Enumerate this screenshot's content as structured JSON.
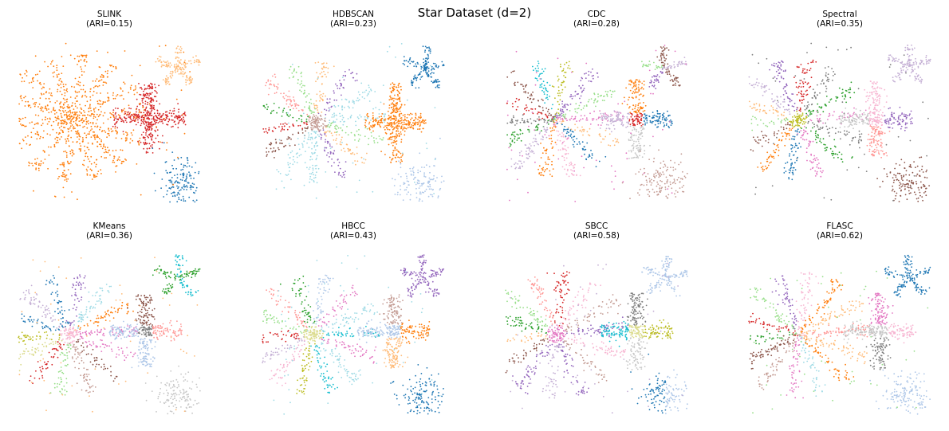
{
  "figure": {
    "title": "Star Dataset (d=2)"
  },
  "palette": {
    "blue": "#1f77b4",
    "light_blue": "#aec7e8",
    "orange": "#ff7f0e",
    "light_orange": "#ffbb78",
    "green": "#2ca02c",
    "light_green": "#98df8a",
    "red": "#d62728",
    "light_red": "#ff9896",
    "purple": "#9467bd",
    "light_purple": "#c5b0d5",
    "brown": "#8c564b",
    "light_brown": "#c49c94",
    "pink": "#e377c2",
    "light_pink": "#f7b6d2",
    "gray": "#7f7f7f",
    "light_gray": "#c7c7c7",
    "olive": "#bcbd22",
    "light_olive": "#dbdb8d",
    "cyan": "#17becf",
    "light_cyan": "#9edae5"
  },
  "chart_data": [
    {
      "type": "scatter",
      "method": "SLINK",
      "ari_label": "(ARI=0.15)",
      "ari": 0.15,
      "xlim": [
        0,
        100
      ],
      "ylim": [
        0,
        100
      ],
      "axes_visible": false,
      "groups": [
        {
          "name": "big-star",
          "shape": "star",
          "center": [
            30,
            53
          ],
          "arms": 14,
          "length": 40,
          "points": 900,
          "rotation": 5,
          "color_mode": "single",
          "colors": [
            "#ff7f0e"
          ]
        },
        {
          "name": "plus",
          "shape": "plus",
          "center": [
            72,
            53
          ],
          "half_width": 20,
          "half_height": 22,
          "points": 450,
          "color_mode": "single",
          "colors": [
            "#d62728"
          ]
        },
        {
          "name": "small-star",
          "shape": "star",
          "center": [
            88,
            85
          ],
          "arms": 5,
          "length": 13,
          "points": 170,
          "rotation": 18,
          "color_mode": "single",
          "colors": [
            "#ffbb78"
          ]
        },
        {
          "name": "blob",
          "shape": "blob",
          "center": [
            90,
            12
          ],
          "spread": [
            6,
            8
          ],
          "points": 160,
          "color_mode": "single",
          "colors": [
            "#1f77b4"
          ]
        },
        {
          "name": "noise",
          "shape": "noise",
          "points": 55,
          "color_mode": "single",
          "colors": [
            "#ff7f0e"
          ]
        }
      ]
    },
    {
      "type": "scatter",
      "method": "HDBSCAN",
      "ari_label": "(ARI=0.23)",
      "ari": 0.23,
      "xlim": [
        0,
        100
      ],
      "ylim": [
        0,
        100
      ],
      "axes_visible": false,
      "groups": [
        {
          "name": "big-star",
          "shape": "star",
          "center": [
            30,
            50
          ],
          "arms": 14,
          "length": 38,
          "points": 800,
          "rotation": 8,
          "color_mode": "core-arms",
          "colors": [
            "#c49c94",
            "#9edae5",
            "#9edae5",
            "#9467bd",
            "#ffbb78",
            "#98df8a",
            "#ff9896",
            "#2ca02c",
            "#d62728",
            "#8c564b"
          ]
        },
        {
          "name": "plus",
          "shape": "plus",
          "center": [
            73,
            50
          ],
          "half_width": 17,
          "half_height": 25,
          "points": 420,
          "color_mode": "single",
          "colors": [
            "#ff7f0e"
          ]
        },
        {
          "name": "small-star",
          "shape": "star",
          "center": [
            90,
            84
          ],
          "arms": 5,
          "length": 14,
          "points": 170,
          "rotation": 14,
          "color_mode": "single",
          "colors": [
            "#1f77b4"
          ]
        },
        {
          "name": "blob",
          "shape": "blob",
          "center": [
            88,
            12
          ],
          "spread": [
            8,
            8
          ],
          "points": 140,
          "color_mode": "single",
          "colors": [
            "#aec7e8"
          ]
        },
        {
          "name": "noise",
          "shape": "noise",
          "points": 45,
          "color_mode": "single",
          "colors": [
            "#9edae5"
          ]
        }
      ]
    },
    {
      "type": "scatter",
      "method": "CDC",
      "ari_label": "(ARI=0.28)",
      "ari": 0.28,
      "xlim": [
        0,
        100
      ],
      "ylim": [
        0,
        100
      ],
      "axes_visible": false,
      "groups": [
        {
          "name": "big-star",
          "shape": "star",
          "center": [
            27,
            52
          ],
          "arms": 14,
          "length": 38,
          "points": 800,
          "rotation": 3,
          "color_mode": "arms",
          "colors": [
            "#e377c2",
            "#98df8a",
            "#9467bd",
            "#bcbd22",
            "#17becf",
            "#8c564b",
            "#d62728",
            "#7f7f7f",
            "#2ca02c",
            "#c5b0d5",
            "#ff7f0e",
            "#f7b6d2",
            "#1f77b4",
            "#ffbb78"
          ]
        },
        {
          "name": "plus",
          "shape": "plus",
          "center": [
            72,
            52
          ],
          "half_width": 20,
          "half_height": 25,
          "points": 420,
          "color_mode": "quadrants",
          "colors": [
            "#c5b0d5",
            "#1f77b4",
            "#ff7f0e",
            "#c7c7c7",
            "#d62728"
          ]
        },
        {
          "name": "small-star",
          "shape": "star",
          "center": [
            87,
            84
          ],
          "arms": 5,
          "length": 14,
          "points": 160,
          "rotation": 20,
          "color_mode": "arms",
          "colors": [
            "#c5b0d5",
            "#8c564b",
            "#98df8a",
            "#9467bd",
            "#8c564b"
          ]
        },
        {
          "name": "blob",
          "shape": "blob",
          "center": [
            87,
            13
          ],
          "spread": [
            8,
            8
          ],
          "points": 150,
          "color_mode": "single",
          "colors": [
            "#c49c94"
          ]
        },
        {
          "name": "noise",
          "shape": "noise",
          "points": 60,
          "color_mode": "single",
          "colors": [
            "#e377c2"
          ]
        }
      ]
    },
    {
      "type": "scatter",
      "method": "Spectral",
      "ari_label": "(ARI=0.35)",
      "ari": 0.35,
      "xlim": [
        0,
        100
      ],
      "ylim": [
        0,
        100
      ],
      "axes_visible": false,
      "groups": [
        {
          "name": "big-star",
          "shape": "star",
          "center": [
            27,
            52
          ],
          "arms": 14,
          "length": 38,
          "points": 800,
          "rotation": 6,
          "color_mode": "core-arms",
          "colors": [
            "#bcbd22",
            "#e377c2",
            "#2ca02c",
            "#7f7f7f",
            "#d62728",
            "#9467bd",
            "#c5b0d5",
            "#ffbb78",
            "#98df8a",
            "#8c564b",
            "#ff7f0e",
            "#1f77b4"
          ]
        },
        {
          "name": "plus",
          "shape": "plus",
          "center": [
            70,
            52
          ],
          "half_width": 20,
          "half_height": 24,
          "points": 420,
          "color_mode": "quadrants",
          "colors": [
            "#c7c7c7",
            "#9467bd",
            "#f7b6d2",
            "#ff9896",
            "#f7b6d2"
          ]
        },
        {
          "name": "small-star",
          "shape": "star",
          "center": [
            88,
            86
          ],
          "arms": 5,
          "length": 13,
          "points": 160,
          "rotation": 15,
          "color_mode": "single",
          "colors": [
            "#c5b0d5"
          ]
        },
        {
          "name": "blob",
          "shape": "blob",
          "center": [
            88,
            12
          ],
          "spread": [
            7,
            8
          ],
          "points": 150,
          "color_mode": "single",
          "colors": [
            "#8c564b"
          ]
        },
        {
          "name": "noise",
          "shape": "noise",
          "points": 50,
          "color_mode": "single",
          "colors": [
            "#7f7f7f"
          ]
        }
      ]
    },
    {
      "type": "scatter",
      "method": "KMeans",
      "ari_label": "(ARI=0.36)",
      "ari": 0.36,
      "xlim": [
        0,
        100
      ],
      "ylim": [
        0,
        100
      ],
      "axes_visible": false,
      "groups": [
        {
          "name": "big-star",
          "shape": "star",
          "center": [
            28,
            50
          ],
          "arms": 14,
          "length": 38,
          "points": 800,
          "rotation": 4,
          "color_mode": "core-arms",
          "colors": [
            "#f7b6d2",
            "#e377c2",
            "#ff7f0e",
            "#9edae5",
            "#9467bd",
            "#1f77b4",
            "#c5b0d5",
            "#1f77b4",
            "#bcbd22",
            "#dbdb8d",
            "#d62728",
            "#98df8a",
            "#c49c94",
            "#8c564b"
          ]
        },
        {
          "name": "plus",
          "shape": "plus",
          "center": [
            70,
            52
          ],
          "half_width": 20,
          "half_height": 23,
          "points": 420,
          "color_mode": "quadrants",
          "colors": [
            "#aec7e8",
            "#ff9896",
            "#8c564b",
            "#aec7e8",
            "#7f7f7f"
          ]
        },
        {
          "name": "small-star",
          "shape": "star",
          "center": [
            88,
            86
          ],
          "arms": 5,
          "length": 14,
          "points": 160,
          "rotation": 16,
          "color_mode": "arms",
          "colors": [
            "#2ca02c",
            "#17becf",
            "#2ca02c",
            "#2ca02c",
            "#17becf"
          ]
        },
        {
          "name": "blob",
          "shape": "blob",
          "center": [
            88,
            12
          ],
          "spread": [
            7,
            8
          ],
          "points": 150,
          "color_mode": "single",
          "colors": [
            "#c7c7c7"
          ]
        },
        {
          "name": "noise",
          "shape": "noise",
          "points": 55,
          "color_mode": "single",
          "colors": [
            "#ffbb78"
          ]
        }
      ]
    },
    {
      "type": "scatter",
      "method": "HBCC",
      "ari_label": "(ARI=0.43)",
      "ari": 0.43,
      "xlim": [
        0,
        100
      ],
      "ylim": [
        0,
        100
      ],
      "axes_visible": false,
      "groups": [
        {
          "name": "big-star",
          "shape": "star",
          "center": [
            28,
            50
          ],
          "arms": 14,
          "length": 38,
          "points": 800,
          "rotation": 2,
          "color_mode": "core-arms",
          "colors": [
            "#dbdb8d",
            "#17becf",
            "#9edae5",
            "#e377c2",
            "#aec7e8",
            "#2ca02c",
            "#ff9896",
            "#98df8a",
            "#d62728",
            "#c5b0d5",
            "#f7b6d2",
            "#bcbd22"
          ]
        },
        {
          "name": "plus",
          "shape": "plus",
          "center": [
            72,
            52
          ],
          "half_width": 20,
          "half_height": 23,
          "points": 420,
          "color_mode": "quadrants",
          "colors": [
            "#aec7e8",
            "#ff7f0e",
            "#c49c94",
            "#ffbb78",
            "#aec7e8"
          ]
        },
        {
          "name": "small-star",
          "shape": "star",
          "center": [
            88,
            86
          ],
          "arms": 5,
          "length": 14,
          "points": 160,
          "rotation": 18,
          "color_mode": "single",
          "colors": [
            "#9467bd"
          ]
        },
        {
          "name": "blob",
          "shape": "blob",
          "center": [
            88,
            12
          ],
          "spread": [
            7,
            8
          ],
          "points": 150,
          "color_mode": "single",
          "colors": [
            "#1f77b4"
          ]
        },
        {
          "name": "noise",
          "shape": "noise",
          "points": 55,
          "color_mode": "single",
          "colors": [
            "#9edae5"
          ]
        }
      ]
    },
    {
      "type": "scatter",
      "method": "SBCC",
      "ari_label": "(ARI=0.58)",
      "ari": 0.58,
      "xlim": [
        0,
        100
      ],
      "ylim": [
        0,
        100
      ],
      "axes_visible": false,
      "groups": [
        {
          "name": "big-star",
          "shape": "star",
          "center": [
            28,
            50
          ],
          "arms": 14,
          "length": 40,
          "points": 820,
          "rotation": 7,
          "color_mode": "core-arms",
          "colors": [
            "#e377c2",
            "#9467bd",
            "#c49c94",
            "#f7b6d2",
            "#d62728",
            "#ff9896",
            "#98df8a",
            "#2ca02c",
            "#ffbb78",
            "#8c564b",
            "#9467bd",
            "#c5b0d5"
          ]
        },
        {
          "name": "plus",
          "shape": "plus",
          "center": [
            72,
            52
          ],
          "half_width": 20,
          "half_height": 24,
          "points": 420,
          "color_mode": "quadrants",
          "colors": [
            "#17becf",
            "#bcbd22",
            "#7f7f7f",
            "#c7c7c7",
            "#dbdb8d"
          ]
        },
        {
          "name": "small-star",
          "shape": "star",
          "center": [
            88,
            86
          ],
          "arms": 5,
          "length": 14,
          "points": 160,
          "rotation": 12,
          "color_mode": "single",
          "colors": [
            "#aec7e8"
          ]
        },
        {
          "name": "blob",
          "shape": "blob",
          "center": [
            88,
            12
          ],
          "spread": [
            7,
            8
          ],
          "points": 150,
          "color_mode": "quadrants",
          "colors": [
            "#1f77b4",
            "#aec7e8",
            "#1f77b4",
            "#aec7e8",
            "#1f77b4"
          ]
        },
        {
          "name": "noise",
          "shape": "noise",
          "points": 50,
          "color_mode": "single",
          "colors": [
            "#c5b0d5"
          ]
        }
      ]
    },
    {
      "type": "scatter",
      "method": "FLASC",
      "ari_label": "(ARI=0.62)",
      "ari": 0.62,
      "xlim": [
        0,
        100
      ],
      "ylim": [
        0,
        100
      ],
      "axes_visible": false,
      "groups": [
        {
          "name": "big-star",
          "shape": "star",
          "center": [
            28,
            50
          ],
          "arms": 14,
          "length": 40,
          "points": 820,
          "rotation": 5,
          "color_mode": "arms",
          "colors": [
            "#ff9896",
            "#ffbb78",
            "#ff7f0e",
            "#f7b6d2",
            "#9467bd",
            "#98df8a",
            "#d62728",
            "#2ca02c",
            "#8c564b",
            "#c49c94",
            "#e377c2",
            "#9edae5",
            "#ff7f0e",
            "#ffbb78"
          ]
        },
        {
          "name": "plus",
          "shape": "plus",
          "center": [
            72,
            52
          ],
          "half_width": 20,
          "half_height": 24,
          "points": 420,
          "color_mode": "quadrants",
          "colors": [
            "#c7c7c7",
            "#f7b6d2",
            "#e377c2",
            "#7f7f7f",
            "#c7c7c7"
          ]
        },
        {
          "name": "small-star",
          "shape": "star",
          "center": [
            88,
            86
          ],
          "arms": 5,
          "length": 14,
          "points": 160,
          "rotation": 20,
          "color_mode": "single",
          "colors": [
            "#1f77b4"
          ]
        },
        {
          "name": "blob",
          "shape": "blob",
          "center": [
            88,
            12
          ],
          "spread": [
            7,
            8
          ],
          "points": 150,
          "color_mode": "single",
          "colors": [
            "#aec7e8"
          ]
        },
        {
          "name": "noise",
          "shape": "noise",
          "points": 45,
          "color_mode": "single",
          "colors": [
            "#98df8a"
          ]
        }
      ]
    }
  ]
}
